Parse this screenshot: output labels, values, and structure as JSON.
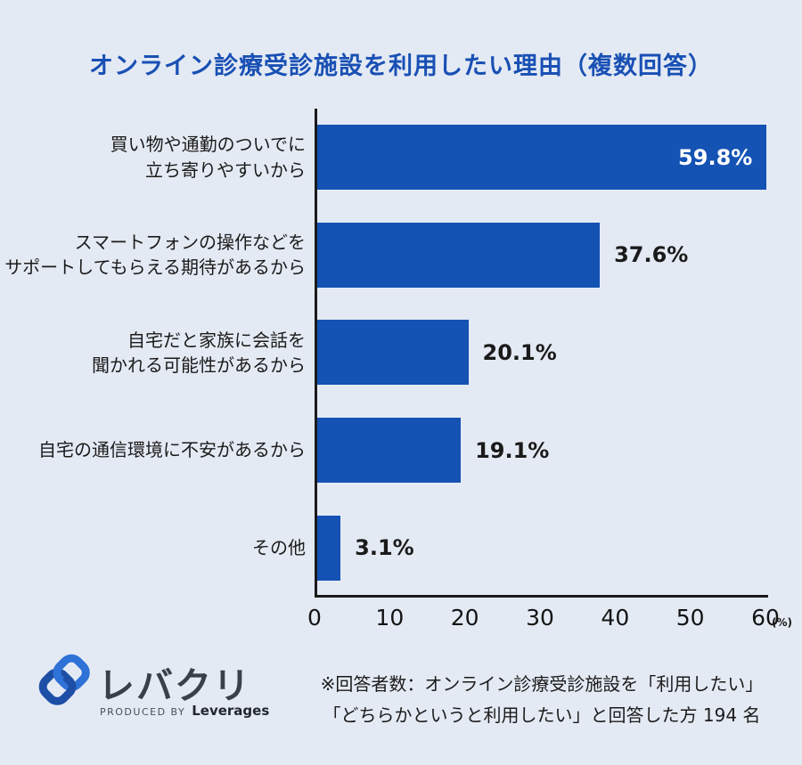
{
  "title": "オンライン診療受診施設を利用したい理由（複数回答）",
  "colors": {
    "background": "#e4eaf4",
    "bar": "#1452b4",
    "title": "#1950b4",
    "axis": "#1a1a1a",
    "text": "#1b1b1b",
    "value_on_bar": "#ffffff",
    "logo_dark_blue": "#1e4fa6",
    "logo_light_blue": "#2e72d8"
  },
  "chart_data": {
    "type": "bar",
    "orientation": "horizontal",
    "title": "オンライン診療受診施設を利用したい理由（複数回答）",
    "categories": [
      [
        "買い物や通勤のついでに",
        "立ち寄りやすいから"
      ],
      [
        "スマートフォンの操作などを",
        "サポートしてもらえる期待があるから"
      ],
      [
        "自宅だと家族に会話を",
        "聞かれる可能性があるから"
      ],
      [
        "自宅の通信環境に不安があるから"
      ],
      [
        "その他"
      ]
    ],
    "values": [
      59.8,
      37.6,
      20.1,
      19.1,
      3.1
    ],
    "value_labels": [
      "59.8%",
      "37.6%",
      "20.1%",
      "19.1%",
      "3.1%"
    ],
    "value_label_placement": [
      "inside",
      "outside",
      "outside",
      "outside",
      "outside"
    ],
    "xlim": [
      0,
      60
    ],
    "x_ticks": [
      0,
      10,
      20,
      30,
      40,
      50,
      60
    ],
    "x_unit": "(%)",
    "grid": false,
    "legend": false
  },
  "footer": {
    "logo": {
      "brand": "レバクリ",
      "produced_by": "PRODUCED BY",
      "company": "Leverages"
    },
    "note_line1": "※回答者数：オンライン診療受診施設を「利用したい」",
    "note_line2": "「どちらかというと利用したい」と回答した方 194 名"
  }
}
